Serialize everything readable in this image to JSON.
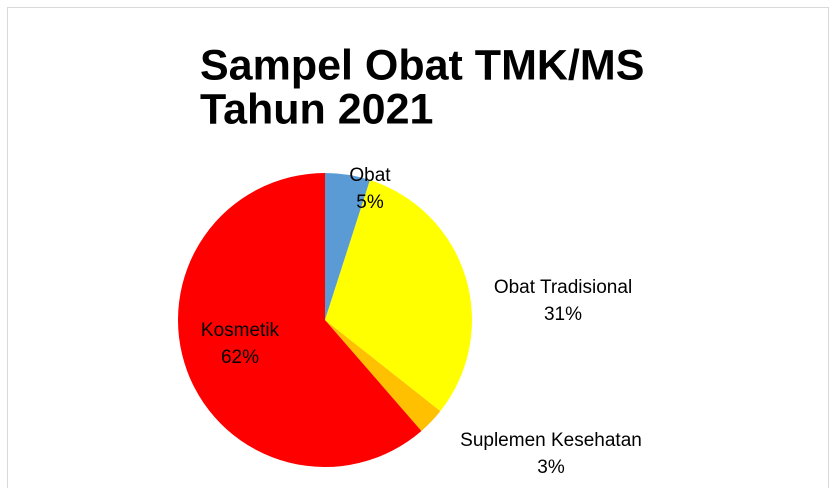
{
  "chart_data": {
    "type": "pie",
    "title": [
      "Sampel Obat TMK/MS",
      "Tahun 2021"
    ],
    "categories": [
      "Obat",
      "Obat Tradisional",
      "Suplemen Kesehatan",
      "Kosmetik"
    ],
    "values": [
      5,
      31,
      3,
      62
    ],
    "value_labels": [
      "5%",
      "31%",
      "3%",
      "62%"
    ],
    "colors": [
      "#5b9bd5",
      "#ffff00",
      "#ffc000",
      "#ff0000"
    ]
  }
}
